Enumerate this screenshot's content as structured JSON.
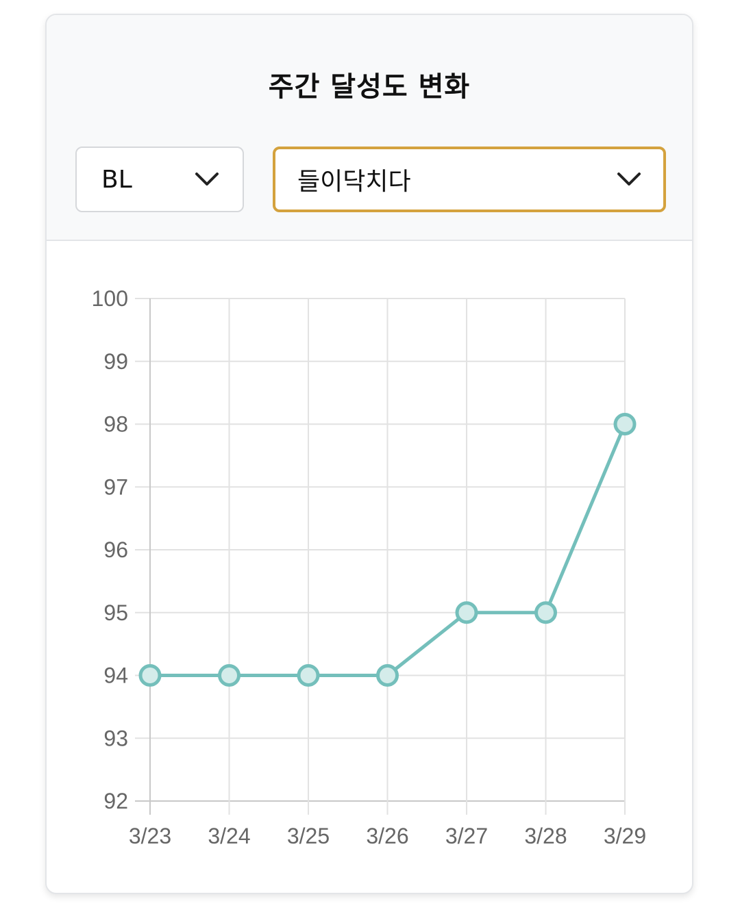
{
  "header": {
    "title": "주간 달성도 변화"
  },
  "filters": {
    "category_select": {
      "value": "BL"
    },
    "item_select": {
      "value": "들이닥치다"
    }
  },
  "colors": {
    "line": "#74bfbb",
    "point_fill": "#d4ecea",
    "grid": "#e2e2e2",
    "axis": "#c8c8c8",
    "accent_border": "#d4a23e"
  },
  "chart_data": {
    "type": "line",
    "categories": [
      "3/23",
      "3/24",
      "3/25",
      "3/26",
      "3/27",
      "3/28",
      "3/29"
    ],
    "series": [
      {
        "values": [
          94,
          94,
          94,
          94,
          95,
          95,
          98
        ]
      }
    ],
    "title": "",
    "xlabel": "",
    "ylabel": "",
    "ylim": [
      92,
      100
    ],
    "yticks": [
      92,
      93,
      94,
      95,
      96,
      97,
      98,
      99,
      100
    ],
    "grid": true,
    "legend": "none"
  }
}
